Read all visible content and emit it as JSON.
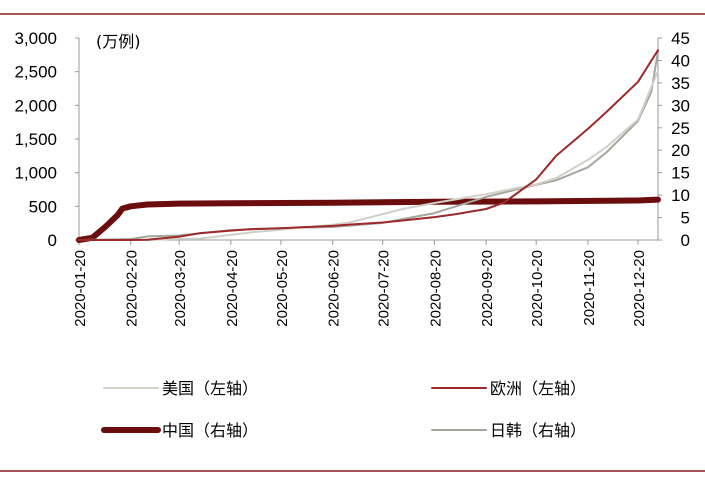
{
  "chart_data": {
    "type": "line",
    "ylabel_left": "(万例)",
    "ylim_left": [
      0,
      3000
    ],
    "yticks_left": [
      "0",
      "500",
      "1,000",
      "1,500",
      "2,000",
      "2,500",
      "3,000"
    ],
    "ylim_right": [
      0,
      45
    ],
    "yticks_right": [
      "0",
      "5",
      "10",
      "15",
      "20",
      "25",
      "30",
      "35",
      "40",
      "45"
    ],
    "x_start": "2020-01-20",
    "x_end": "2021-01-01",
    "xticks": [
      "2020-01-20",
      "2020-02-20",
      "2020-03-20",
      "2020-04-20",
      "2020-05-20",
      "2020-06-20",
      "2020-07-20",
      "2020-08-20",
      "2020-09-20",
      "2020-10-20",
      "2020-11-20",
      "2020-12-20"
    ],
    "grid": false,
    "legend_placement": "bottom",
    "series": [
      {
        "name": "美国（左轴）",
        "axis": "left",
        "color": "#cfd0c8",
        "width": 2,
        "points": [
          [
            "2020-01-20",
            0
          ],
          [
            "2020-03-01",
            0
          ],
          [
            "2020-03-20",
            20
          ],
          [
            "2020-04-01",
            20
          ],
          [
            "2020-04-20",
            75
          ],
          [
            "2020-05-01",
            110
          ],
          [
            "2020-05-20",
            155
          ],
          [
            "2020-06-01",
            180
          ],
          [
            "2020-06-20",
            225
          ],
          [
            "2020-07-01",
            265
          ],
          [
            "2020-07-20",
            385
          ],
          [
            "2020-08-01",
            460
          ],
          [
            "2020-08-20",
            550
          ],
          [
            "2020-09-01",
            600
          ],
          [
            "2020-09-20",
            680
          ],
          [
            "2020-10-01",
            735
          ],
          [
            "2020-10-20",
            825
          ],
          [
            "2020-11-01",
            920
          ],
          [
            "2020-11-20",
            1190
          ],
          [
            "2020-12-01",
            1380
          ],
          [
            "2020-12-20",
            1790
          ],
          [
            "2020-12-31",
            2450
          ],
          [
            "2021-01-01",
            2510
          ]
        ]
      },
      {
        "name": "欧洲（左轴）",
        "axis": "left",
        "color": "#9c2a2a",
        "width": 2,
        "points": [
          [
            "2020-01-20",
            0
          ],
          [
            "2020-02-20",
            0
          ],
          [
            "2020-03-01",
            5
          ],
          [
            "2020-03-20",
            50
          ],
          [
            "2020-04-01",
            100
          ],
          [
            "2020-04-20",
            140
          ],
          [
            "2020-05-01",
            160
          ],
          [
            "2020-05-20",
            175
          ],
          [
            "2020-06-01",
            190
          ],
          [
            "2020-06-20",
            210
          ],
          [
            "2020-07-01",
            230
          ],
          [
            "2020-07-20",
            260
          ],
          [
            "2020-08-01",
            290
          ],
          [
            "2020-08-20",
            340
          ],
          [
            "2020-09-01",
            380
          ],
          [
            "2020-09-20",
            460
          ],
          [
            "2020-10-01",
            560
          ],
          [
            "2020-10-20",
            900
          ],
          [
            "2020-11-01",
            1250
          ],
          [
            "2020-11-20",
            1650
          ],
          [
            "2020-12-01",
            1900
          ],
          [
            "2020-12-20",
            2350
          ],
          [
            "2021-01-01",
            2820
          ]
        ]
      },
      {
        "name": "中国（右轴）",
        "axis": "right",
        "color": "#6b0d0d",
        "width": 6,
        "points": [
          [
            "2020-01-20",
            0
          ],
          [
            "2020-01-28",
            0.5
          ],
          [
            "2020-02-05",
            3
          ],
          [
            "2020-02-12",
            5.5
          ],
          [
            "2020-02-15",
            7
          ],
          [
            "2020-02-20",
            7.5
          ],
          [
            "2020-03-01",
            7.9
          ],
          [
            "2020-03-20",
            8.1
          ],
          [
            "2020-04-20",
            8.2
          ],
          [
            "2020-06-20",
            8.3
          ],
          [
            "2020-08-20",
            8.5
          ],
          [
            "2020-10-20",
            8.6
          ],
          [
            "2020-12-20",
            8.8
          ],
          [
            "2021-01-01",
            9
          ]
        ]
      },
      {
        "name": "日韩（右轴）",
        "axis": "right",
        "color": "#a6a69e",
        "width": 2,
        "points": [
          [
            "2020-01-20",
            0
          ],
          [
            "2020-02-20",
            0.2
          ],
          [
            "2020-03-01",
            0.8
          ],
          [
            "2020-03-20",
            1.0
          ],
          [
            "2020-04-20",
            2.2
          ],
          [
            "2020-05-20",
            2.6
          ],
          [
            "2020-06-20",
            2.9
          ],
          [
            "2020-07-20",
            3.8
          ],
          [
            "2020-08-20",
            6.0
          ],
          [
            "2020-09-20",
            9.6
          ],
          [
            "2020-10-20",
            12.3
          ],
          [
            "2020-11-01",
            13.3
          ],
          [
            "2020-11-20",
            16.2
          ],
          [
            "2020-12-01",
            19.5
          ],
          [
            "2020-12-20",
            26.5
          ],
          [
            "2020-12-28",
            33
          ],
          [
            "2021-01-01",
            42
          ]
        ]
      }
    ]
  },
  "frame_color": "#8b1a1a"
}
